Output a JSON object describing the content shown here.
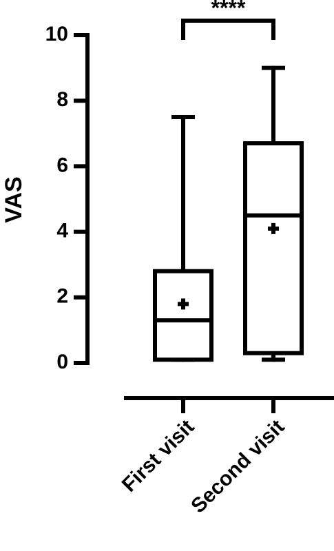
{
  "chart_data": {
    "type": "box",
    "y_label": "VAS",
    "annotation": "****",
    "categories": [
      "First visit",
      "Second visit"
    ],
    "boxes": [
      {
        "min": 0.1,
        "q1": 0.1,
        "median": 1.3,
        "q3": 2.8,
        "max": 7.5,
        "mean": 1.8
      },
      {
        "min": 0.1,
        "q1": 0.3,
        "median": 4.5,
        "q3": 6.7,
        "max": 9,
        "mean": 4.1
      }
    ],
    "color": "#000000",
    "ylim": [
      0,
      10
    ],
    "yticks": [
      0,
      2,
      4,
      6,
      8,
      10
    ]
  }
}
